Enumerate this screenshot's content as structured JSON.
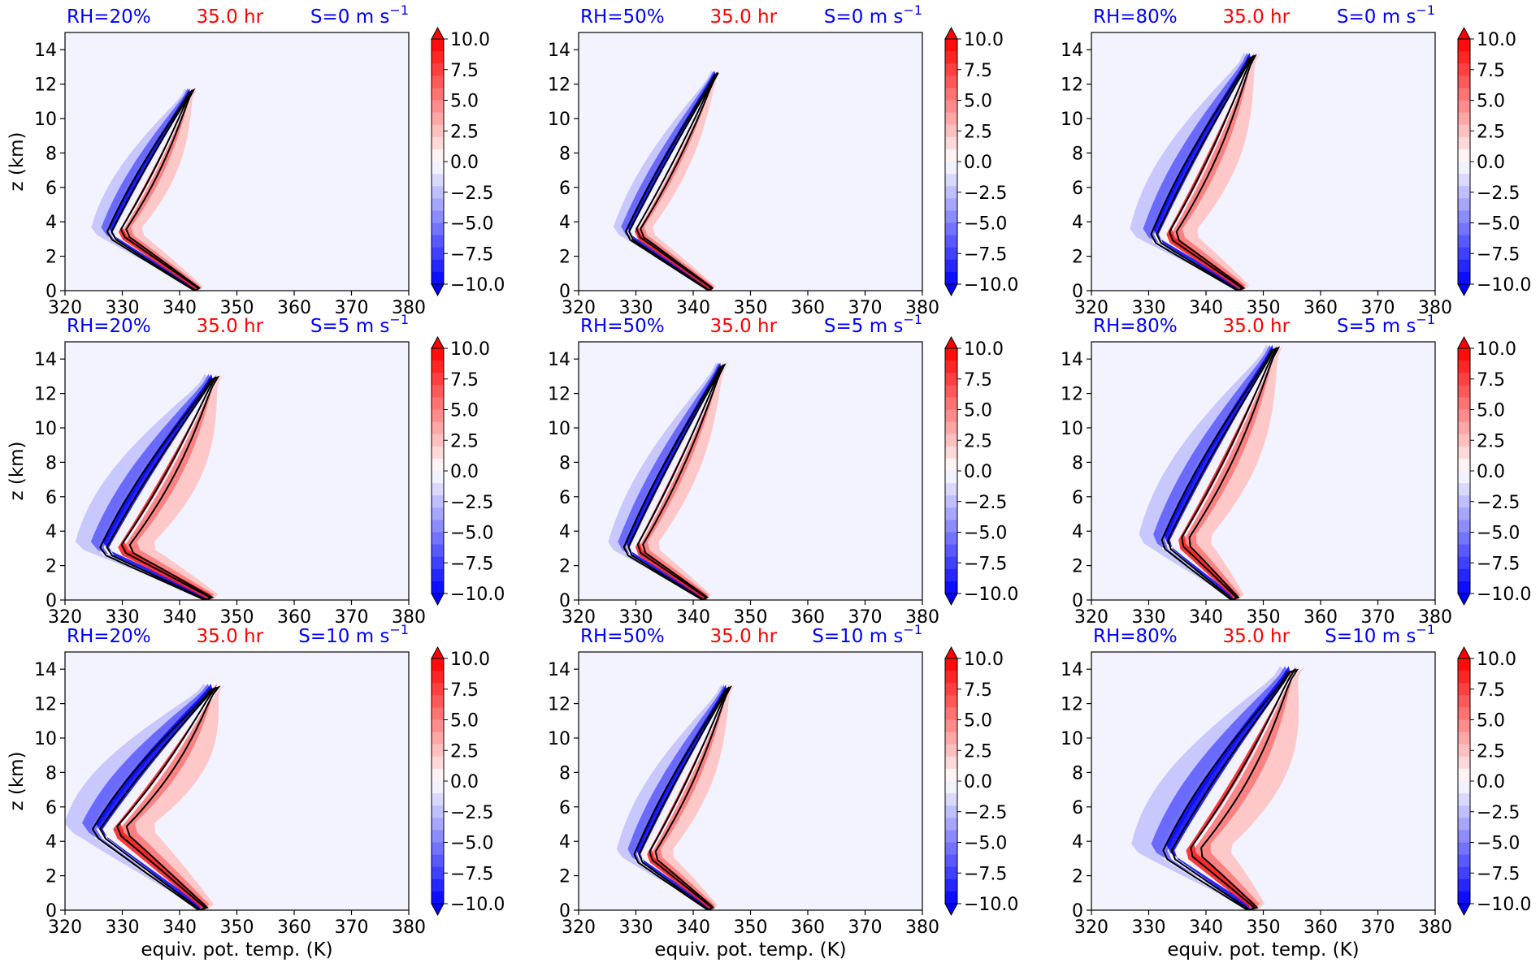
{
  "colors": {
    "negative": "#0000ff",
    "positive": "#ff0000",
    "background_fill": "#f3f3ff",
    "contour": "#000000",
    "title_blue": "#0000ff",
    "title_red": "#ff0000"
  },
  "chart_data": [
    {
      "type": "contour",
      "rh": "RH=20%",
      "time": "35.0 hr",
      "shear": "S=0 m s",
      "shear_sup": "−1",
      "xlabel": "",
      "ylabel": "z (km)",
      "xlim": [
        320,
        380
      ],
      "ylim": [
        0,
        15
      ],
      "x_ticks": [
        "320",
        "330",
        "340",
        "350",
        "360",
        "370",
        "380"
      ],
      "y_ticks": [
        "0",
        "2",
        "4",
        "6",
        "8",
        "10",
        "12",
        "14"
      ],
      "colorbar_ticks": [
        "10.0",
        "7.5",
        "5.0",
        "2.5",
        "0.0",
        "−2.5",
        "−5.0",
        "−7.5",
        "−10.0"
      ],
      "colorbar_range": [
        -10,
        10
      ],
      "blob": {
        "cx": 328.5,
        "cz": 3.2,
        "tx": 342,
        "tz": 11.5,
        "bx": 343,
        "bz": 0,
        "width": 4.5,
        "spread": 1.0
      }
    },
    {
      "type": "contour",
      "rh": "RH=50%",
      "time": "35.0 hr",
      "shear": "S=0 m s",
      "shear_sup": "−1",
      "xlabel": "",
      "ylabel": "",
      "xlim": [
        320,
        380
      ],
      "ylim": [
        0,
        15
      ],
      "x_ticks": [
        "320",
        "330",
        "340",
        "350",
        "360",
        "370",
        "380"
      ],
      "y_ticks": [
        "0",
        "2",
        "4",
        "6",
        "8",
        "10",
        "12",
        "14"
      ],
      "colorbar_ticks": [
        "10.0",
        "7.5",
        "5.0",
        "2.5",
        "0.0",
        "−2.5",
        "−5.0",
        "−7.5",
        "−10.0"
      ],
      "colorbar_range": [
        -10,
        10
      ],
      "blob": {
        "cx": 329,
        "cz": 3.2,
        "tx": 344,
        "tz": 12.5,
        "bx": 343,
        "bz": 0,
        "width": 3.5,
        "spread": 1.1
      }
    },
    {
      "type": "contour",
      "rh": "RH=80%",
      "time": "35.0 hr",
      "shear": "S=0 m s",
      "shear_sup": "−1",
      "xlabel": "",
      "ylabel": "",
      "xlim": [
        320,
        380
      ],
      "ylim": [
        0,
        15
      ],
      "x_ticks": [
        "320",
        "330",
        "340",
        "350",
        "360",
        "370",
        "380"
      ],
      "y_ticks": [
        "0",
        "2",
        "4",
        "6",
        "8",
        "10",
        "12",
        "14"
      ],
      "colorbar_ticks": [
        "10.0",
        "7.5",
        "5.0",
        "2.5",
        "0.0",
        "−2.5",
        "−5.0",
        "−7.5",
        "−10.0"
      ],
      "colorbar_range": [
        -10,
        10
      ],
      "blob": {
        "cx": 332,
        "cz": 3.0,
        "tx": 348,
        "tz": 13.5,
        "bx": 346,
        "bz": 0,
        "width": 6,
        "spread": 1.3
      }
    },
    {
      "type": "contour",
      "rh": "RH=20%",
      "time": "35.0 hr",
      "shear": "S=5 m s",
      "shear_sup": "−1",
      "xlabel": "",
      "ylabel": "z (km)",
      "xlim": [
        320,
        380
      ],
      "ylim": [
        0,
        15
      ],
      "x_ticks": [
        "320",
        "330",
        "340",
        "350",
        "360",
        "370",
        "380"
      ],
      "y_ticks": [
        "0",
        "2",
        "4",
        "6",
        "8",
        "10",
        "12",
        "14"
      ],
      "colorbar_ticks": [
        "10.0",
        "7.5",
        "5.0",
        "2.5",
        "0.0",
        "−2.5",
        "−5.0",
        "−7.5",
        "−10.0"
      ],
      "colorbar_range": [
        -10,
        10
      ],
      "blob": {
        "cx": 328,
        "cz": 2.8,
        "tx": 346,
        "tz": 12.8,
        "bx": 345,
        "bz": 0,
        "width": 7,
        "spread": 1.3
      }
    },
    {
      "type": "contour",
      "rh": "RH=50%",
      "time": "35.0 hr",
      "shear": "S=5 m s",
      "shear_sup": "−1",
      "xlabel": "",
      "ylabel": "",
      "xlim": [
        320,
        380
      ],
      "ylim": [
        0,
        15
      ],
      "x_ticks": [
        "320",
        "330",
        "340",
        "350",
        "360",
        "370",
        "380"
      ],
      "y_ticks": [
        "0",
        "2",
        "4",
        "6",
        "8",
        "10",
        "12",
        "14"
      ],
      "colorbar_ticks": [
        "10.0",
        "7.5",
        "5.0",
        "2.5",
        "0.0",
        "−2.5",
        "−5.0",
        "−7.5",
        "−10.0"
      ],
      "colorbar_range": [
        -10,
        10
      ],
      "blob": {
        "cx": 329,
        "cz": 2.8,
        "tx": 345,
        "tz": 13.5,
        "bx": 342,
        "bz": 0,
        "width": 4.5,
        "spread": 1.2
      }
    },
    {
      "type": "contour",
      "rh": "RH=80%",
      "time": "35.0 hr",
      "shear": "S=5 m s",
      "shear_sup": "−1",
      "xlabel": "",
      "ylabel": "",
      "xlim": [
        320,
        380
      ],
      "ylim": [
        0,
        15
      ],
      "x_ticks": [
        "320",
        "330",
        "340",
        "350",
        "360",
        "370",
        "380"
      ],
      "y_ticks": [
        "0",
        "2",
        "4",
        "6",
        "8",
        "10",
        "12",
        "14"
      ],
      "colorbar_ticks": [
        "10.0",
        "7.5",
        "5.0",
        "2.5",
        "0.0",
        "−2.5",
        "−5.0",
        "−7.5",
        "−10.0"
      ],
      "colorbar_range": [
        -10,
        10
      ],
      "blob": {
        "cx": 334,
        "cz": 3.2,
        "tx": 352,
        "tz": 14.5,
        "bx": 345,
        "bz": 0,
        "width": 6.5,
        "spread": 1.3
      }
    },
    {
      "type": "contour",
      "rh": "RH=20%",
      "time": "35.0 hr",
      "shear": "S=10 m s",
      "shear_sup": "−1",
      "xlabel": "equiv. pot. temp. (K)",
      "ylabel": "z (km)",
      "xlim": [
        320,
        380
      ],
      "ylim": [
        0,
        15
      ],
      "x_ticks": [
        "320",
        "330",
        "340",
        "350",
        "360",
        "370",
        "380"
      ],
      "y_ticks": [
        "0",
        "2",
        "4",
        "6",
        "8",
        "10",
        "12",
        "14"
      ],
      "colorbar_ticks": [
        "10.0",
        "7.5",
        "5.0",
        "2.5",
        "0.0",
        "−2.5",
        "−5.0",
        "−7.5",
        "−10.0"
      ],
      "colorbar_range": [
        -10,
        10
      ],
      "blob": {
        "cx": 327,
        "cz": 4.5,
        "tx": 346,
        "tz": 12.8,
        "bx": 344,
        "bz": 0,
        "width": 8,
        "spread": 1.4
      }
    },
    {
      "type": "contour",
      "rh": "RH=50%",
      "time": "35.0 hr",
      "shear": "S=10 m s",
      "shear_sup": "−1",
      "xlabel": "equiv. pot. temp. (K)",
      "ylabel": "",
      "xlim": [
        320,
        380
      ],
      "ylim": [
        0,
        15
      ],
      "x_ticks": [
        "320",
        "330",
        "340",
        "350",
        "360",
        "370",
        "380"
      ],
      "y_ticks": [
        "0",
        "2",
        "4",
        "6",
        "8",
        "10",
        "12",
        "14"
      ],
      "colorbar_ticks": [
        "10.0",
        "7.5",
        "5.0",
        "2.5",
        "0.0",
        "−2.5",
        "−5.0",
        "−7.5",
        "−10.0"
      ],
      "colorbar_range": [
        -10,
        10
      ],
      "blob": {
        "cx": 331,
        "cz": 3.0,
        "tx": 346,
        "tz": 12.8,
        "bx": 343,
        "bz": 0,
        "width": 5,
        "spread": 1.2
      }
    },
    {
      "type": "contour",
      "rh": "RH=80%",
      "time": "35.0 hr",
      "shear": "S=10 m s",
      "shear_sup": "−1",
      "xlabel": "equiv. pot. temp. (K)",
      "ylabel": "",
      "xlim": [
        320,
        380
      ],
      "ylim": [
        0,
        15
      ],
      "x_ticks": [
        "320",
        "330",
        "340",
        "350",
        "360",
        "370",
        "380"
      ],
      "y_ticks": [
        "0",
        "2",
        "4",
        "6",
        "8",
        "10",
        "12",
        "14"
      ],
      "colorbar_ticks": [
        "10.0",
        "7.5",
        "5.0",
        "2.5",
        "0.0",
        "−2.5",
        "−5.0",
        "−7.5",
        "−10.0"
      ],
      "colorbar_range": [
        -10,
        10
      ],
      "blob": {
        "cx": 335,
        "cz": 3.2,
        "tx": 355,
        "tz": 13.8,
        "bx": 348,
        "bz": 0,
        "width": 9,
        "spread": 1.5
      }
    }
  ]
}
